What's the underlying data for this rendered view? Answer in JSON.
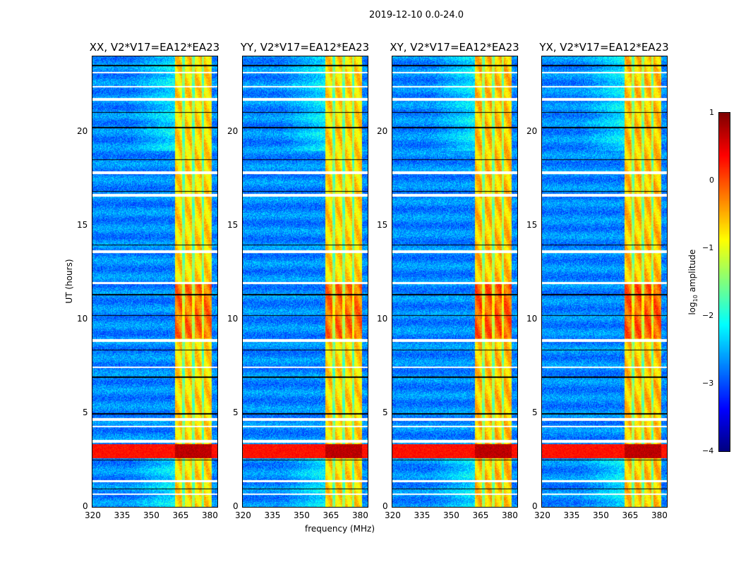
{
  "chart_data": {
    "type": "heatmap",
    "title": "2019-12-10 0.0-24.0",
    "panels": [
      {
        "title": "XX, V2*V17=EA12*EA23"
      },
      {
        "title": "YY, V2*V17=EA12*EA23"
      },
      {
        "title": "XY, V2*V17=EA12*EA23"
      },
      {
        "title": "YX, V2*V17=EA12*EA23"
      }
    ],
    "xlabel": "frequency (MHz)",
    "ylabel": "UT (hours)",
    "xlim": [
      320,
      384
    ],
    "ylim": [
      0,
      24
    ],
    "xticks": [
      "320",
      "335",
      "350",
      "365",
      "380"
    ],
    "xtick_values": [
      320,
      335,
      350,
      365,
      380
    ],
    "yticks": [
      "0",
      "5",
      "10",
      "15",
      "20"
    ],
    "ytick_values": [
      0,
      5,
      10,
      15,
      20
    ],
    "colorbar": {
      "label": "log",
      "label_sub": "10",
      "label_tail": " amplitude",
      "range": [
        -4,
        1
      ],
      "ticks": [
        "1",
        "0",
        "−1",
        "−2",
        "−3",
        "−4"
      ],
      "tick_values": [
        1,
        0,
        -1,
        -2,
        -3,
        -4
      ],
      "colormap": "jet"
    },
    "features": {
      "background_level": -2.7,
      "band_mhz": [
        362,
        381
      ],
      "band_level": -0.7,
      "subband_gaps_mhz": [
        366.5,
        371.5,
        376.5
      ],
      "rfi_hours": [
        2.6,
        3.35
      ],
      "rfi_level": 0.3,
      "flagged_hours": [
        [
          0.65,
          0.75
        ],
        [
          1.35,
          1.45
        ],
        [
          3.45,
          3.6
        ],
        [
          4.25,
          4.35
        ],
        [
          4.6,
          4.75
        ],
        [
          7.4,
          7.5
        ],
        [
          8.8,
          8.95
        ],
        [
          11.9,
          12.0
        ],
        [
          13.55,
          13.7
        ],
        [
          16.55,
          16.7
        ],
        [
          17.75,
          17.9
        ],
        [
          21.65,
          21.8
        ],
        [
          22.35,
          22.45
        ],
        [
          23.1,
          23.2
        ]
      ],
      "gap_hours": [
        [
          0.95,
          1.0
        ],
        [
          2.5,
          2.55
        ],
        [
          4.95,
          5.0
        ],
        [
          6.9,
          6.95
        ],
        [
          8.35,
          8.4
        ],
        [
          10.2,
          10.25
        ],
        [
          11.3,
          11.35
        ],
        [
          13.95,
          14.0
        ],
        [
          16.8,
          16.85
        ],
        [
          18.5,
          18.55
        ],
        [
          20.2,
          20.25
        ],
        [
          21.0,
          21.05
        ],
        [
          23.5,
          23.55
        ]
      ]
    }
  }
}
